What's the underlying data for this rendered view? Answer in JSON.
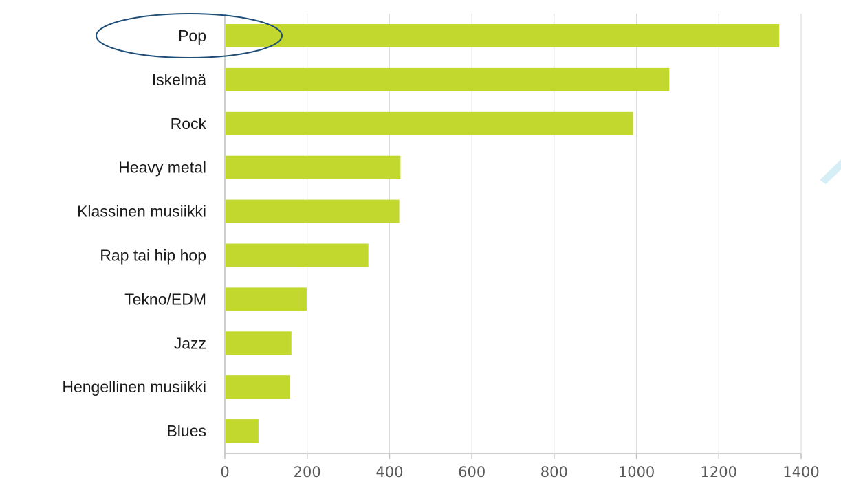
{
  "chart_data": {
    "type": "bar",
    "orientation": "horizontal",
    "categories": [
      "Pop",
      "Iskelmä",
      "Rock",
      "Heavy metal",
      "Klassinen musiikki",
      "Rap tai  hip hop",
      "Tekno/EDM",
      "Jazz",
      "Hengellinen musiikki",
      "Blues"
    ],
    "values": [
      1345,
      1078,
      990,
      425,
      422,
      347,
      197,
      160,
      157,
      80
    ],
    "xlim": [
      0,
      1400
    ],
    "xticks": [
      "0",
      "200",
      "400",
      "600",
      "800",
      "1000",
      "1200",
      "1400"
    ],
    "grid": "vertical",
    "bar_color": "#c2d82e",
    "annotation": "ellipse around Pop"
  },
  "colors": {
    "bar": "#c2d82e",
    "grid": "#d9d9d9",
    "axis": "#bfbfbf",
    "ellipse": "#1f4e79",
    "accent": "#d6eef6"
  }
}
